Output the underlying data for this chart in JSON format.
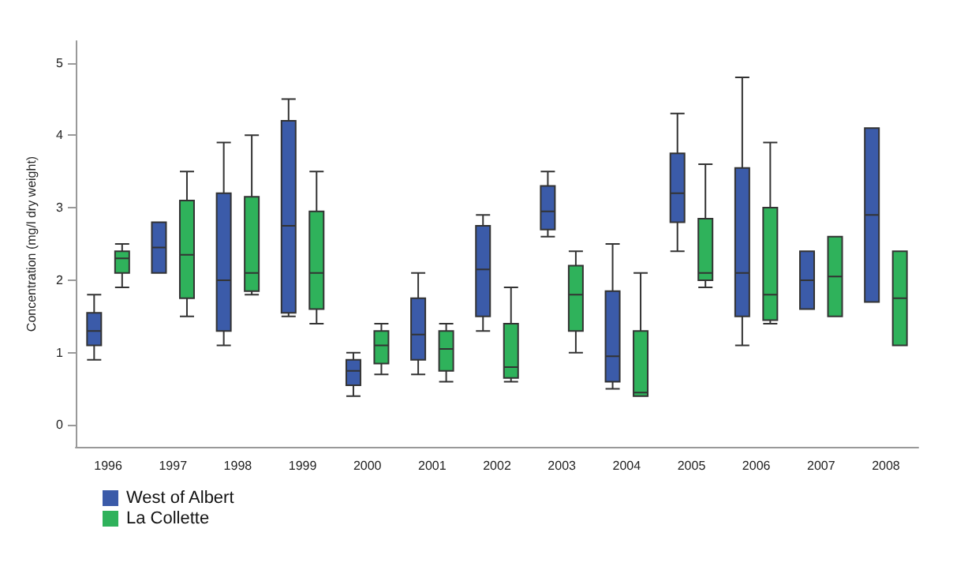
{
  "chart_data": {
    "type": "box",
    "ylabel": "Concentration (mg/l dry weight)",
    "categories": [
      "1996",
      "1997",
      "1998",
      "1999",
      "2000",
      "2001",
      "2002",
      "2003",
      "2004",
      "2005",
      "2006",
      "2007",
      "2008"
    ],
    "ylim": [
      -0.3,
      5.3
    ],
    "yticks": [
      0,
      1,
      2,
      3,
      4,
      5
    ],
    "grid": false,
    "legend": "bottom left",
    "series": [
      {
        "name": "West of Albert",
        "color": "#3b5ba9",
        "boxes": [
          {
            "low": 0.9,
            "q1": 1.1,
            "median": 1.3,
            "q3": 1.55,
            "high": 1.8
          },
          {
            "low": 2.1,
            "q1": 2.1,
            "median": 2.45,
            "q3": 2.8,
            "high": 2.8
          },
          {
            "low": 1.1,
            "q1": 1.3,
            "median": 2.0,
            "q3": 3.2,
            "high": 3.9
          },
          {
            "low": 1.5,
            "q1": 1.55,
            "median": 2.75,
            "q3": 4.2,
            "high": 4.5
          },
          {
            "low": 0.4,
            "q1": 0.55,
            "median": 0.75,
            "q3": 0.9,
            "high": 1.0
          },
          {
            "low": 0.7,
            "q1": 0.9,
            "median": 1.25,
            "q3": 1.75,
            "high": 2.1
          },
          {
            "low": 1.3,
            "q1": 1.5,
            "median": 2.15,
            "q3": 2.75,
            "high": 2.9
          },
          {
            "low": 2.6,
            "q1": 2.7,
            "median": 2.95,
            "q3": 3.3,
            "high": 3.5
          },
          {
            "low": 0.5,
            "q1": 0.6,
            "median": 0.95,
            "q3": 1.85,
            "high": 2.5
          },
          {
            "low": 2.4,
            "q1": 2.8,
            "median": 3.2,
            "q3": 3.75,
            "high": 4.3
          },
          {
            "low": 1.1,
            "q1": 1.5,
            "median": 2.1,
            "q3": 3.55,
            "high": 4.8
          },
          {
            "low": 1.6,
            "q1": 1.6,
            "median": 2.0,
            "q3": 2.4,
            "high": 2.4
          },
          {
            "low": 1.7,
            "q1": 1.7,
            "median": 2.9,
            "q3": 4.1,
            "high": 4.1
          }
        ]
      },
      {
        "name": "La Collette",
        "color": "#2fb25b",
        "boxes": [
          {
            "low": 1.9,
            "q1": 2.1,
            "median": 2.3,
            "q3": 2.4,
            "high": 2.5
          },
          {
            "low": 1.5,
            "q1": 1.75,
            "median": 2.35,
            "q3": 3.1,
            "high": 3.5
          },
          {
            "low": 1.8,
            "q1": 1.85,
            "median": 2.1,
            "q3": 3.15,
            "high": 4.0
          },
          {
            "low": 1.4,
            "q1": 1.6,
            "median": 2.1,
            "q3": 2.95,
            "high": 3.5
          },
          {
            "low": 0.7,
            "q1": 0.85,
            "median": 1.1,
            "q3": 1.3,
            "high": 1.4
          },
          {
            "low": 0.6,
            "q1": 0.75,
            "median": 1.05,
            "q3": 1.3,
            "high": 1.4
          },
          {
            "low": 0.6,
            "q1": 0.65,
            "median": 0.8,
            "q3": 1.4,
            "high": 1.9
          },
          {
            "low": 1.0,
            "q1": 1.3,
            "median": 1.8,
            "q3": 2.2,
            "high": 2.4
          },
          {
            "low": 0.4,
            "q1": 0.4,
            "median": 0.45,
            "q3": 1.3,
            "high": 2.1
          },
          {
            "low": 1.9,
            "q1": 2.0,
            "median": 2.1,
            "q3": 2.85,
            "high": 3.6
          },
          {
            "low": 1.4,
            "q1": 1.45,
            "median": 1.8,
            "q3": 3.0,
            "high": 3.9
          },
          {
            "low": 1.5,
            "q1": 1.5,
            "median": 2.05,
            "q3": 2.6,
            "high": 2.6
          },
          {
            "low": 1.1,
            "q1": 1.1,
            "median": 1.75,
            "q3": 2.4,
            "high": 2.4
          }
        ]
      }
    ]
  }
}
